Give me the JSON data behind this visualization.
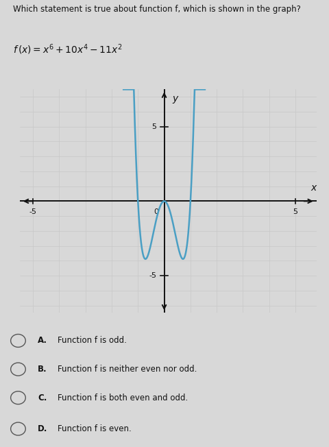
{
  "title_question": "Which statement is true about function f, which is shown in the graph?",
  "xlim": [
    -5.5,
    5.8
  ],
  "ylim": [
    -7.5,
    7.5
  ],
  "xtick_vals": [
    -5,
    5
  ],
  "ytick_vals": [
    5,
    -5
  ],
  "curve_color": "#4a9fc4",
  "curve_linewidth": 1.8,
  "grid_color": "#c8c8c8",
  "grid_linewidth": 0.5,
  "bg_color": "#d8d8d8",
  "fig_color": "#d8d8d8",
  "axis_color": "#111111",
  "x_plot_min": -1.55,
  "x_plot_max": 1.55,
  "y_scale": 1.35,
  "choices_letters": [
    "A.",
    "B.",
    "C.",
    "D."
  ],
  "choices_text": [
    "Function f is odd.",
    "Function f is neither even nor odd.",
    "Function f is both even and odd.",
    "Function f is even."
  ]
}
